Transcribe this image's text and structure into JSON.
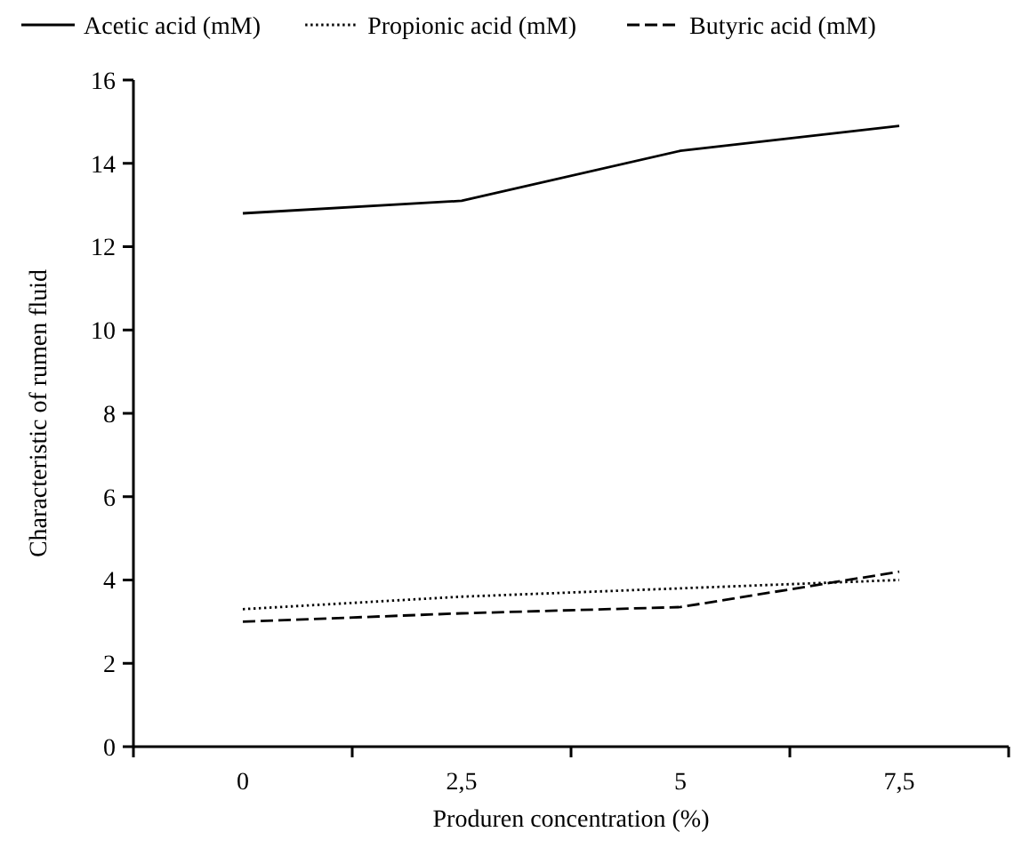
{
  "chart_data": {
    "type": "line",
    "xlabel": "Produren concentration (%)",
    "ylabel": "Characteristic of rumen fluid",
    "categories": [
      "0",
      "2,5",
      "5",
      "7,5"
    ],
    "series": [
      {
        "name": "Acetic acid (mM)",
        "color": "#000000",
        "line_style": "solid",
        "values": [
          12.8,
          13.1,
          14.3,
          14.9
        ]
      },
      {
        "name": "Propionic acid (mM)",
        "color": "#000000",
        "line_style": "dotted",
        "values": [
          3.3,
          3.6,
          3.8,
          4.0
        ]
      },
      {
        "name": "Butyric acid (mM)",
        "color": "#000000",
        "line_style": "dashed",
        "values": [
          3.0,
          3.2,
          3.35,
          4.2
        ]
      }
    ],
    "ylim": [
      0,
      16
    ],
    "yticks": [
      0,
      2,
      4,
      6,
      8,
      10,
      12,
      14,
      16
    ],
    "grid": false,
    "legend": "top",
    "marker": "none"
  }
}
